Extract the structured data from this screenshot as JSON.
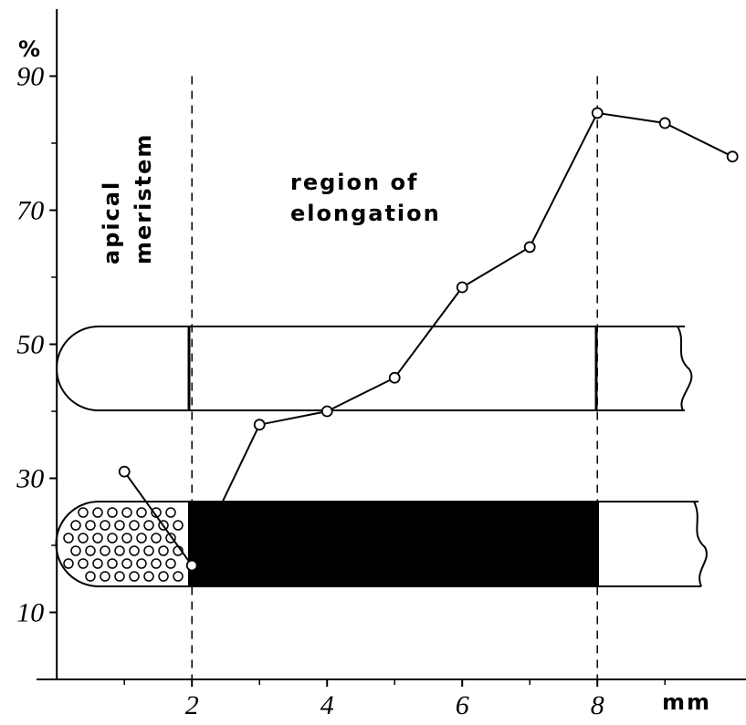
{
  "chart_data": {
    "type": "line",
    "x": [
      1,
      2,
      3,
      4,
      5,
      6,
      7,
      8,
      9,
      10
    ],
    "series": [
      {
        "color": "#000000",
        "values": [
          31,
          17,
          38,
          40,
          45,
          58.5,
          64.5,
          84.5,
          83,
          78
        ]
      }
    ],
    "xlim": [
      -0.3,
      10.2
    ],
    "ylim": [
      0,
      100
    ],
    "xticks": [
      2,
      4,
      6,
      8
    ],
    "yticks": [
      10,
      30,
      50,
      70,
      90
    ],
    "xminorticks": [
      1,
      3,
      5,
      7,
      9
    ],
    "yminorticks": [
      20,
      40,
      60,
      80
    ],
    "vlines": [
      2,
      8
    ],
    "ylabel": "%",
    "xlabel": "mm",
    "annotations": [
      "apical",
      "meristem",
      "region of",
      "elongation"
    ]
  }
}
